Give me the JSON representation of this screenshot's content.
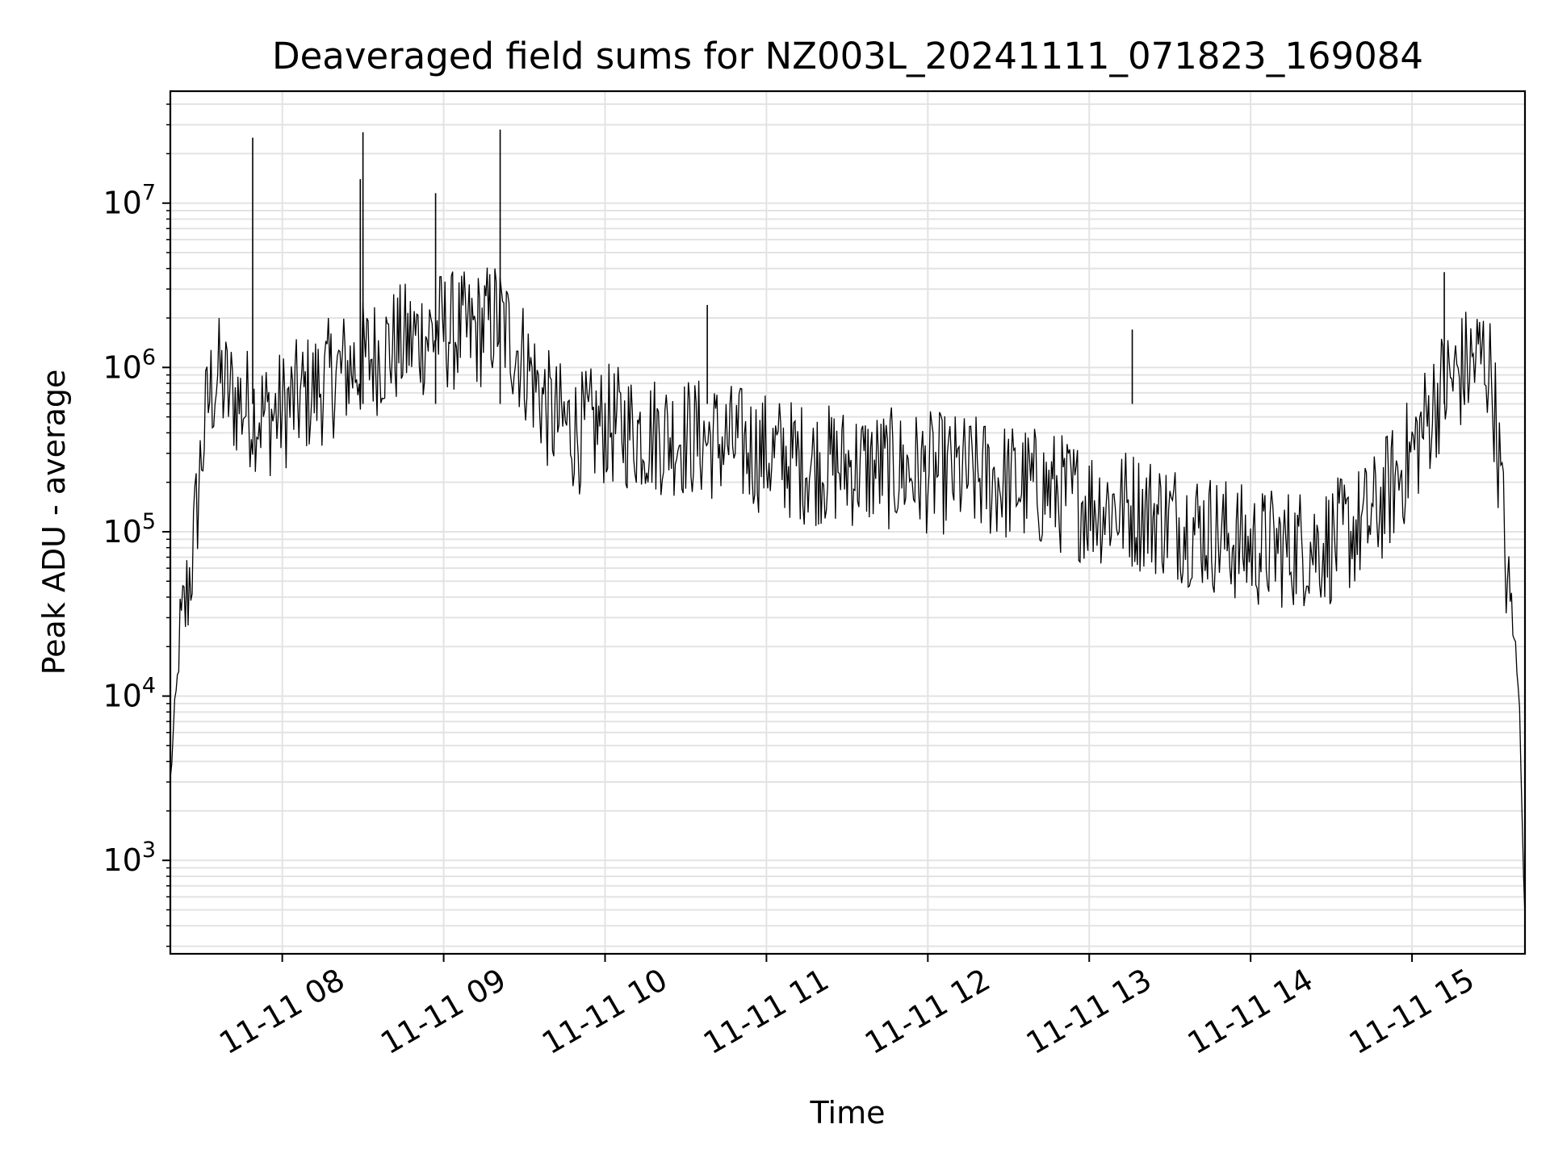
{
  "chart_data": {
    "type": "line",
    "title": "Deaveraged field sums for NZ003L_20241111_071823_169084",
    "xlabel": "Time",
    "ylabel": "Peak ADU - average",
    "yscale": "log",
    "ylim": [
      270,
      48000000
    ],
    "xlim": [
      "2024-11-11 07:18:23",
      "2024-11-11 15:42:00"
    ],
    "grid": true,
    "line_color": "#000000",
    "x_ticks": [
      {
        "value": "2024-11-11 08:00",
        "label": "11-11 08"
      },
      {
        "value": "2024-11-11 09:00",
        "label": "11-11 09"
      },
      {
        "value": "2024-11-11 10:00",
        "label": "11-11 10"
      },
      {
        "value": "2024-11-11 11:00",
        "label": "11-11 11"
      },
      {
        "value": "2024-11-11 12:00",
        "label": "11-11 12"
      },
      {
        "value": "2024-11-11 13:00",
        "label": "11-11 13"
      },
      {
        "value": "2024-11-11 14:00",
        "label": "11-11 14"
      },
      {
        "value": "2024-11-11 15:00",
        "label": "11-11 15"
      }
    ],
    "y_ticks": [
      {
        "value": 1000,
        "base": "10",
        "exp": "3"
      },
      {
        "value": 10000,
        "base": "10",
        "exp": "4"
      },
      {
        "value": 100000,
        "base": "10",
        "exp": "5"
      },
      {
        "value": 1000000,
        "base": "10",
        "exp": "6"
      },
      {
        "value": 10000000,
        "base": "10",
        "exp": "7"
      }
    ],
    "series": [
      {
        "x": [
          "2024-11-11 07:18:23",
          "2024-11-11 07:20",
          "2024-11-11 07:22",
          "2024-11-11 07:24",
          "2024-11-11 07:27",
          "2024-11-11 07:30",
          "2024-11-11 07:33",
          "2024-11-11 07:36",
          "2024-11-11 07:40",
          "2024-11-11 07:45",
          "2024-11-11 07:50",
          "2024-11-11 07:55",
          "2024-11-11 08:00",
          "2024-11-11 08:10",
          "2024-11-11 08:20",
          "2024-11-11 08:30",
          "2024-11-11 08:40",
          "2024-11-11 08:50",
          "2024-11-11 09:00",
          "2024-11-11 09:10",
          "2024-11-11 09:20",
          "2024-11-11 09:30",
          "2024-11-11 09:40",
          "2024-11-11 09:50",
          "2024-11-11 10:00",
          "2024-11-11 10:15",
          "2024-11-11 10:30",
          "2024-11-11 10:45",
          "2024-11-11 11:00",
          "2024-11-11 11:15",
          "2024-11-11 11:30",
          "2024-11-11 11:45",
          "2024-11-11 12:00",
          "2024-11-11 12:15",
          "2024-11-11 12:30",
          "2024-11-11 12:45",
          "2024-11-11 13:00",
          "2024-11-11 13:15",
          "2024-11-11 13:30",
          "2024-11-11 13:45",
          "2024-11-11 14:00",
          "2024-11-11 14:15",
          "2024-11-11 14:30",
          "2024-11-11 14:45",
          "2024-11-11 15:00",
          "2024-11-11 15:10",
          "2024-11-11 15:20",
          "2024-11-11 15:27",
          "2024-11-11 15:30",
          "2024-11-11 15:33",
          "2024-11-11 15:36",
          "2024-11-11 15:38",
          "2024-11-11 15:40",
          "2024-11-11 15:42"
        ],
        "y": [
          3000,
          8000,
          20000,
          35000,
          80000,
          300000,
          700000,
          900000,
          700000,
          600000,
          550000,
          500000,
          550000,
          700000,
          900000,
          1100000,
          1300000,
          1500000,
          1700000,
          1600000,
          2000000,
          1100000,
          500000,
          400000,
          450000,
          400000,
          380000,
          350000,
          300000,
          260000,
          250000,
          240000,
          230000,
          220000,
          200000,
          180000,
          150000,
          140000,
          120000,
          100000,
          80000,
          80000,
          85000,
          120000,
          300000,
          700000,
          1000000,
          1200000,
          800000,
          200000,
          35000,
          25000,
          8000,
          450
        ]
      }
    ],
    "spikes": [
      {
        "x": "2024-11-11 07:49",
        "y": 25000000
      },
      {
        "x": "2024-11-11 08:29",
        "y": 14000000
      },
      {
        "x": "2024-11-11 08:30",
        "y": 27000000
      },
      {
        "x": "2024-11-11 08:57",
        "y": 11500000
      },
      {
        "x": "2024-11-11 09:21",
        "y": 28000000
      },
      {
        "x": "2024-11-11 10:38",
        "y": 2400000
      },
      {
        "x": "2024-11-11 13:16",
        "y": 1700000
      },
      {
        "x": "2024-11-11 15:12",
        "y": 3800000
      }
    ]
  }
}
